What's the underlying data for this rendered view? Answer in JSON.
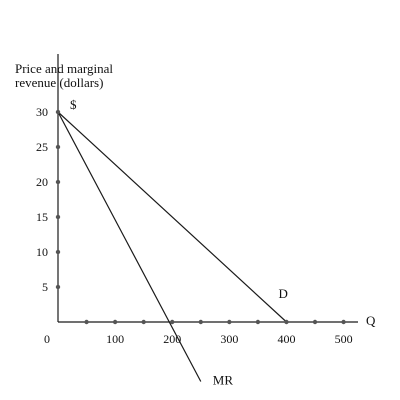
{
  "chart_data": {
    "type": "line",
    "ylabel_lines": [
      "Price and marginal",
      "revenue (dollars)"
    ],
    "y_unit": "$",
    "xlabel": "Q",
    "origin_label": "0",
    "xlim": [
      0,
      520
    ],
    "ylim": [
      -9,
      30
    ],
    "x_ticks": [
      100,
      200,
      300,
      400,
      500
    ],
    "x_tick_labels": [
      "100",
      "200",
      "300",
      "400",
      "500"
    ],
    "y_ticks": [
      5,
      10,
      15,
      20,
      25,
      30
    ],
    "y_tick_labels": [
      "5",
      "10",
      "15",
      "20",
      "25",
      "30"
    ],
    "x_marker_values": [
      50,
      100,
      150,
      200,
      250,
      300,
      350,
      400,
      450,
      500
    ],
    "series": [
      {
        "name": "D",
        "x": [
          0,
          400
        ],
        "y": [
          30,
          0
        ]
      },
      {
        "name": "MR",
        "x": [
          0,
          250
        ],
        "y": [
          30,
          -8.5
        ]
      }
    ],
    "grid": false,
    "colors": {
      "line": "#1a1a1a",
      "marker": "#555555",
      "text": "#111111"
    }
  }
}
